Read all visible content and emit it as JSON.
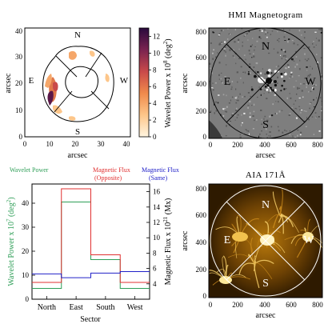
{
  "panels": {
    "wavelet_map": {
      "xlabel": "arcsec",
      "ylabel": "arcsec",
      "x_ticks": [
        "0",
        "10",
        "20",
        "30",
        "40"
      ],
      "y_ticks": [
        "0",
        "10",
        "20",
        "30",
        "40"
      ],
      "directions": {
        "n": "N",
        "s": "S",
        "e": "E",
        "w": "W"
      },
      "colorbar_label": "Wavelet Power x 10",
      "colorbar_exp": "8",
      "colorbar_unit": " (deg",
      "colorbar_unit_exp": "2",
      "colorbar_close": ")",
      "colorbar_ticks": [
        "0",
        "2",
        "4",
        "6",
        "8",
        "10",
        "12"
      ],
      "colorbar_range": [
        0,
        13
      ]
    },
    "hmi": {
      "title": "HMI Magnetogram",
      "xlabel": "arcsec",
      "ylabel": "arcsec",
      "x_ticks": [
        "0",
        "200",
        "400",
        "600",
        "800"
      ],
      "y_ticks": [
        "0",
        "200",
        "400",
        "600",
        "800"
      ],
      "directions": {
        "n": "N",
        "s": "S",
        "e": "E",
        "w": "W"
      }
    },
    "aia": {
      "title": "AIA 171Å",
      "xlabel": "arcsec",
      "ylabel": "arcsec",
      "x_ticks": [
        "0",
        "200",
        "400",
        "600",
        "800"
      ],
      "y_ticks": [
        "0",
        "200",
        "400",
        "600",
        "800"
      ],
      "directions": {
        "n": "N",
        "s": "S",
        "e": "E",
        "w": "W"
      }
    }
  },
  "chart_data": {
    "type": "line",
    "step": true,
    "categories": [
      "North",
      "East",
      "South",
      "West"
    ],
    "xlabel": "Sector",
    "ylabel_left": "Wavelet Power x 10",
    "ylabel_left_exp": "7",
    "ylabel_left_unit": " (deg",
    "ylabel_left_unit_exp": "2",
    "ylabel_left_close": ")",
    "ylabel_right": "Magnetic Flux x 10",
    "ylabel_right_exp": "21",
    "ylabel_right_unit": " (Mx)",
    "ylim_left": [
      0,
      48
    ],
    "ylim_right": [
      2,
      17
    ],
    "left_ticks": [
      0,
      10,
      20,
      30,
      40
    ],
    "right_ticks": [
      4,
      6,
      8,
      10,
      12,
      14,
      16
    ],
    "series": [
      {
        "name": "Wavelet Power",
        "axis": "left",
        "color": "#2e9e57",
        "values": [
          4.5,
          40.5,
          16.5,
          4.5
        ]
      },
      {
        "name": "Magnetic Flux (Opposite)",
        "axis": "left",
        "color": "#e03030",
        "values": [
          7,
          46,
          18.5,
          7
        ]
      },
      {
        "name": "Magnetic Flux (Same)",
        "axis": "right",
        "color": "#2020c8",
        "values": [
          5.3,
          4.8,
          5.4,
          5.6
        ]
      }
    ],
    "legend": {
      "wavelet": "Wavelet Power",
      "opp_1": "Magnetic Flux",
      "opp_2": "(Opposite)",
      "same_1": "Magnetic Flux",
      "same_2": "(Same)"
    }
  },
  "colors": {
    "wavelet_series": "#2e9e57",
    "flux_opposite": "#e03030",
    "flux_same": "#2020c8",
    "colormap": [
      "#fff5e0",
      "#fdc68a",
      "#f08a4b",
      "#c94a4a",
      "#7a2350",
      "#2a0a3d"
    ]
  }
}
